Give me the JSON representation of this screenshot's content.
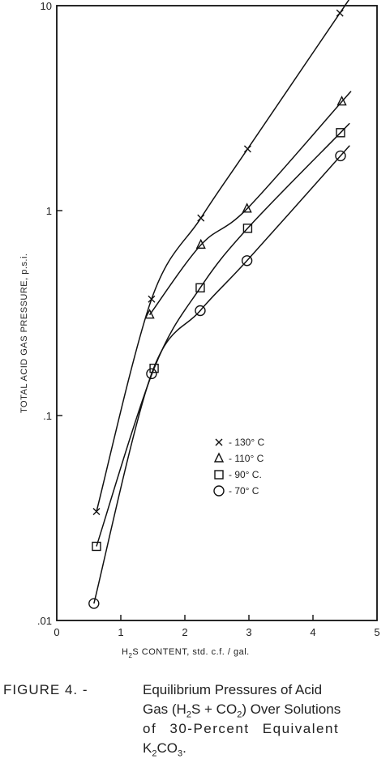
{
  "chart_data": {
    "type": "scatter",
    "title": "",
    "xlabel_parts": [
      "H",
      "2",
      "S CONTENT, std. c.f. / gal."
    ],
    "ylabel": "TOTAL ACID GAS PRESSURE, p.s.i.",
    "xlim": [
      0,
      5
    ],
    "ylim": [
      0.01,
      10
    ],
    "yscale": "log",
    "x_ticks": [
      0,
      1,
      2,
      3,
      4,
      5
    ],
    "x_tick_labels": [
      "0",
      "1",
      "2",
      "3",
      "4",
      "5"
    ],
    "y_ticks": [
      0.01,
      0.1,
      1,
      10
    ],
    "y_tick_labels": [
      ".01",
      ".1",
      "1",
      "10"
    ],
    "grid": false,
    "legend_position": "center-right",
    "series": [
      {
        "name": "- 130° C",
        "marker": "x",
        "x": [
          0.62,
          1.48,
          2.25,
          2.98,
          4.42
        ],
        "y": [
          0.034,
          0.37,
          0.92,
          2.0,
          9.2
        ]
      },
      {
        "name": "- 110° C",
        "marker": "triangle",
        "x": [
          1.45,
          2.25,
          2.97,
          4.45
        ],
        "y": [
          0.31,
          0.68,
          1.02,
          3.4
        ]
      },
      {
        "name": "- 90° C.",
        "marker": "square",
        "x": [
          0.62,
          1.52,
          2.24,
          2.98,
          4.43
        ],
        "y": [
          0.023,
          0.17,
          0.42,
          0.82,
          2.4
        ]
      },
      {
        "name": "- 70° C",
        "marker": "circle",
        "x": [
          0.58,
          1.48,
          2.24,
          2.97,
          4.43
        ],
        "y": [
          0.0121,
          0.16,
          0.325,
          0.57,
          1.85
        ]
      }
    ]
  },
  "caption": {
    "label": "FIGURE 4. -",
    "line1": "Equilibrium Pressures of Acid",
    "line2_pre": "Gas (H",
    "line2_sub1": "2",
    "line2_mid": "S + CO",
    "line2_sub2": "2",
    "line2_post": ") Over Solutions",
    "line3": "of 30-Percent Equivalent",
    "line4_pre": "K",
    "line4_sub1": "2",
    "line4_mid": "CO",
    "line4_sub2": "3",
    "line4_post": "."
  }
}
